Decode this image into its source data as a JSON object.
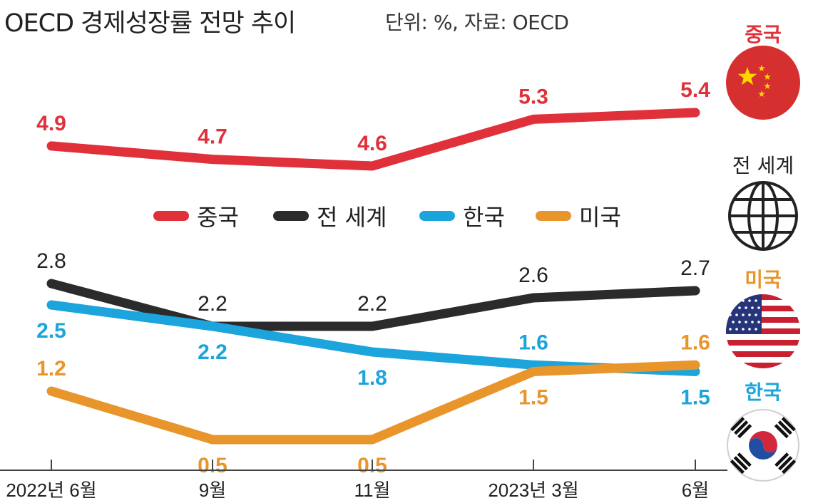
{
  "header": {
    "title": "OECD 경제성장률 전망 추이",
    "unit_note": "단위: %, 자료: OECD"
  },
  "chart_data": {
    "type": "line",
    "title": "OECD 경제성장률 전망 추이",
    "unit": "%",
    "source": "OECD",
    "categories": [
      "2022년 6월",
      "9월",
      "11월",
      "2023년 3월",
      "6월"
    ],
    "series": [
      {
        "name": "중국",
        "color": "#e0313b",
        "values": [
          4.9,
          4.7,
          4.6,
          5.3,
          5.4
        ]
      },
      {
        "name": "전 세계",
        "color": "#2b2b2b",
        "values": [
          2.8,
          2.2,
          2.2,
          2.6,
          2.7
        ]
      },
      {
        "name": "한국",
        "color": "#1ca4dc",
        "values": [
          2.5,
          2.2,
          1.8,
          1.6,
          1.5
        ]
      },
      {
        "name": "미국",
        "color": "#e8952c",
        "values": [
          1.2,
          0.5,
          0.5,
          1.5,
          1.6
        ]
      }
    ],
    "legend": [
      "중국",
      "전 세계",
      "한국",
      "미국"
    ],
    "legend_position": "middle"
  },
  "side_icons": [
    {
      "label": "중국",
      "color": "#e0313b",
      "icon": "china-flag-icon"
    },
    {
      "label": "전 세계",
      "color": "#222222",
      "icon": "globe-icon"
    },
    {
      "label": "미국",
      "color": "#e8952c",
      "icon": "usa-flag-icon"
    },
    {
      "label": "한국",
      "color": "#1ca4dc",
      "icon": "korea-flag-icon"
    }
  ]
}
